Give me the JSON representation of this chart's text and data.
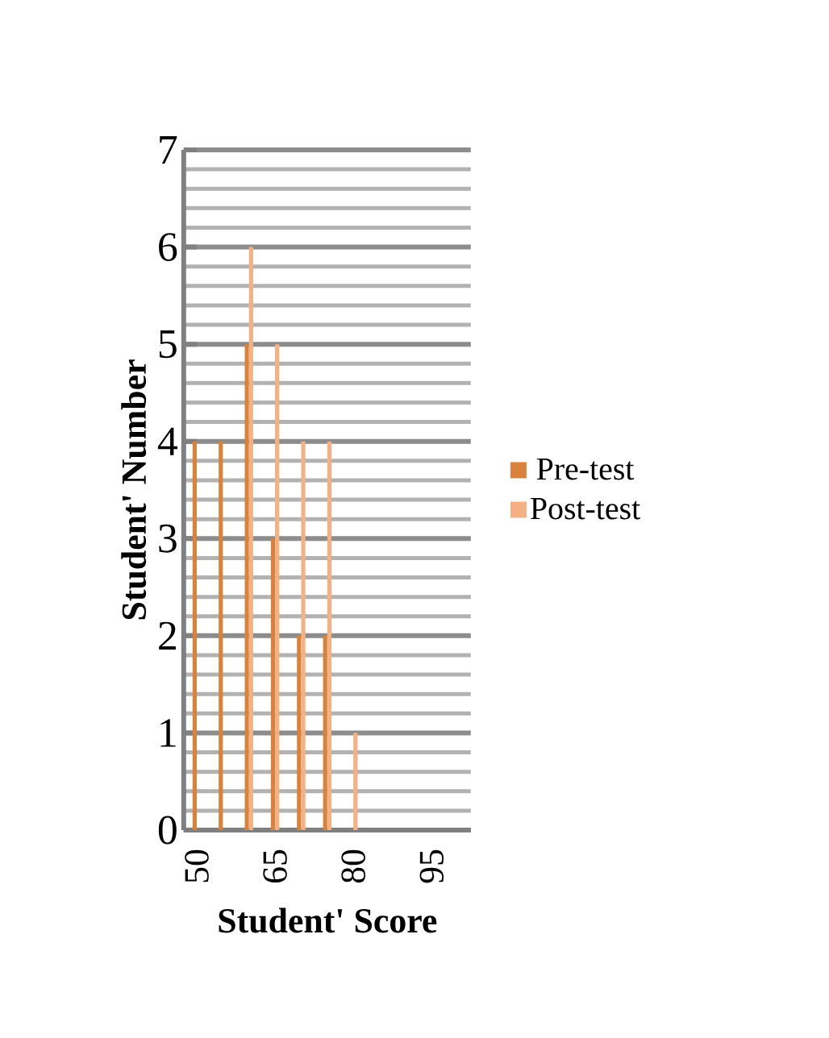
{
  "chart_data": {
    "type": "bar",
    "xlabel": "Student' Score",
    "ylabel": "Student' Number",
    "categories": [
      "50",
      null,
      null,
      "65",
      null,
      null,
      "80",
      null,
      null,
      "95",
      null
    ],
    "series": [
      {
        "name": "Pre-test",
        "color": "#d9823b",
        "values": [
          4,
          4,
          5,
          3,
          2,
          2,
          0,
          0,
          0,
          0,
          0
        ]
      },
      {
        "name": "Post-test",
        "color": "#f4b183",
        "values": [
          0,
          0,
          6,
          5,
          4,
          4,
          1,
          0,
          0,
          0,
          0
        ]
      }
    ],
    "ylim": [
      0,
      7
    ],
    "yticks": [
      0,
      1,
      2,
      3,
      4,
      5,
      6,
      7
    ],
    "grid": "y",
    "legend": "right"
  }
}
